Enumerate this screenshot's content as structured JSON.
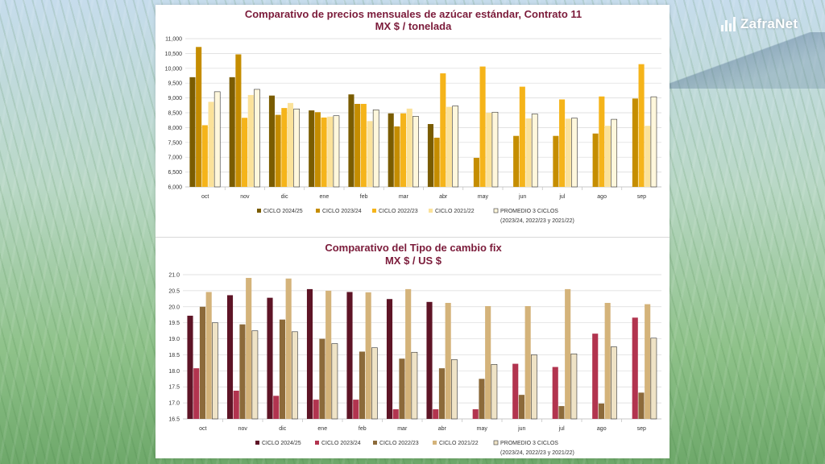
{
  "brand": {
    "name": "ZafraNet",
    "icon": "bar-chart-logo-icon"
  },
  "chart_data": [
    {
      "type": "bar",
      "title": "Comparativo de precios mensuales de azúcar estándar, Contrato 11",
      "subtitle": "MX $ / tonelada",
      "categories": [
        "oct",
        "nov",
        "dic",
        "ene",
        "feb",
        "mar",
        "abr",
        "may",
        "jun",
        "jul",
        "ago",
        "sep"
      ],
      "ylim": [
        6000,
        11000
      ],
      "yticks": [
        6000,
        6500,
        7000,
        7500,
        8000,
        8500,
        9000,
        9500,
        10000,
        10500,
        11000
      ],
      "ytick_labels": [
        "6,000",
        "6,500",
        "7,000",
        "7,500",
        "8,000",
        "8,500",
        "9,000",
        "9,500",
        "10,000",
        "10,500",
        "11,000"
      ],
      "grid": true,
      "legend_position": "bottom",
      "legend_note": "(2023/24, 2022/23 y 2021/22)",
      "series": [
        {
          "name": "CICLO 2024/25",
          "color": "#7a5c00",
          "values": [
            9700,
            9700,
            9080,
            8580,
            9120,
            8480,
            8120,
            null,
            null,
            null,
            null,
            null
          ]
        },
        {
          "name": "CICLO 2023/24",
          "color": "#c58d00",
          "values": [
            10720,
            10470,
            8430,
            8520,
            8800,
            8040,
            7660,
            6980,
            7720,
            7720,
            7800,
            8980
          ]
        },
        {
          "name": "CICLO 2022/23",
          "color": "#f5b41a",
          "values": [
            8080,
            8330,
            8660,
            8340,
            8800,
            8480,
            9830,
            10060,
            9380,
            8950,
            9050,
            10140
          ]
        },
        {
          "name": "CICLO 2021/22",
          "color": "#fbe29a",
          "values": [
            8870,
            9100,
            8830,
            8370,
            8220,
            8640,
            8700,
            8500,
            8310,
            8300,
            8060,
            8060
          ]
        },
        {
          "name": "PROMEDIO 3 CICLOS",
          "color": "#fff7dc",
          "stroke": "#333333",
          "values": [
            9210,
            9290,
            8630,
            8400,
            8600,
            8380,
            8730,
            8520,
            8460,
            8320,
            8280,
            9040
          ]
        }
      ]
    },
    {
      "type": "bar",
      "title": "Comparativo del Tipo de cambio fix",
      "subtitle": "MX $ / US $",
      "categories": [
        "oct",
        "nov",
        "dic",
        "ene",
        "feb",
        "mar",
        "abr",
        "may",
        "jun",
        "jul",
        "ago",
        "sep"
      ],
      "ylim": [
        16.5,
        21.0
      ],
      "yticks": [
        16.5,
        17.0,
        17.5,
        18.0,
        18.5,
        19.0,
        19.5,
        20.0,
        20.5,
        21.0
      ],
      "ytick_labels": [
        "16.5",
        "17.0",
        "17.5",
        "18.0",
        "18.5",
        "19.0",
        "19.5",
        "20.0",
        "20.5",
        "21.0"
      ],
      "grid": true,
      "legend_position": "bottom",
      "legend_note": "(2023/24, 2022/23 y 2021/22)",
      "series": [
        {
          "name": "CICLO 2024/25",
          "color": "#5e1426",
          "values": [
            19.72,
            20.36,
            20.28,
            20.55,
            20.46,
            20.24,
            20.15,
            null,
            null,
            null,
            null,
            null
          ]
        },
        {
          "name": "CICLO 2023/24",
          "color": "#b2344f",
          "values": [
            18.08,
            17.38,
            17.22,
            17.1,
            17.1,
            16.8,
            16.8,
            16.8,
            18.22,
            18.12,
            19.16,
            19.66
          ]
        },
        {
          "name": "CICLO 2022/23",
          "color": "#8c6a3a",
          "values": [
            20.0,
            19.45,
            19.6,
            19.0,
            18.6,
            18.38,
            18.08,
            17.75,
            17.25,
            16.9,
            16.98,
            17.32
          ]
        },
        {
          "name": "CICLO 2021/22",
          "color": "#d4b37a",
          "values": [
            20.46,
            20.9,
            20.88,
            20.5,
            20.45,
            20.55,
            20.12,
            20.02,
            20.02,
            20.55,
            20.12,
            20.08
          ]
        },
        {
          "name": "PROMEDIO 3 CICLOS",
          "color": "#efe3c6",
          "stroke": "#333333",
          "values": [
            19.5,
            19.25,
            19.22,
            18.85,
            18.72,
            18.58,
            18.35,
            18.2,
            18.5,
            18.53,
            18.75,
            19.02
          ]
        }
      ]
    }
  ]
}
